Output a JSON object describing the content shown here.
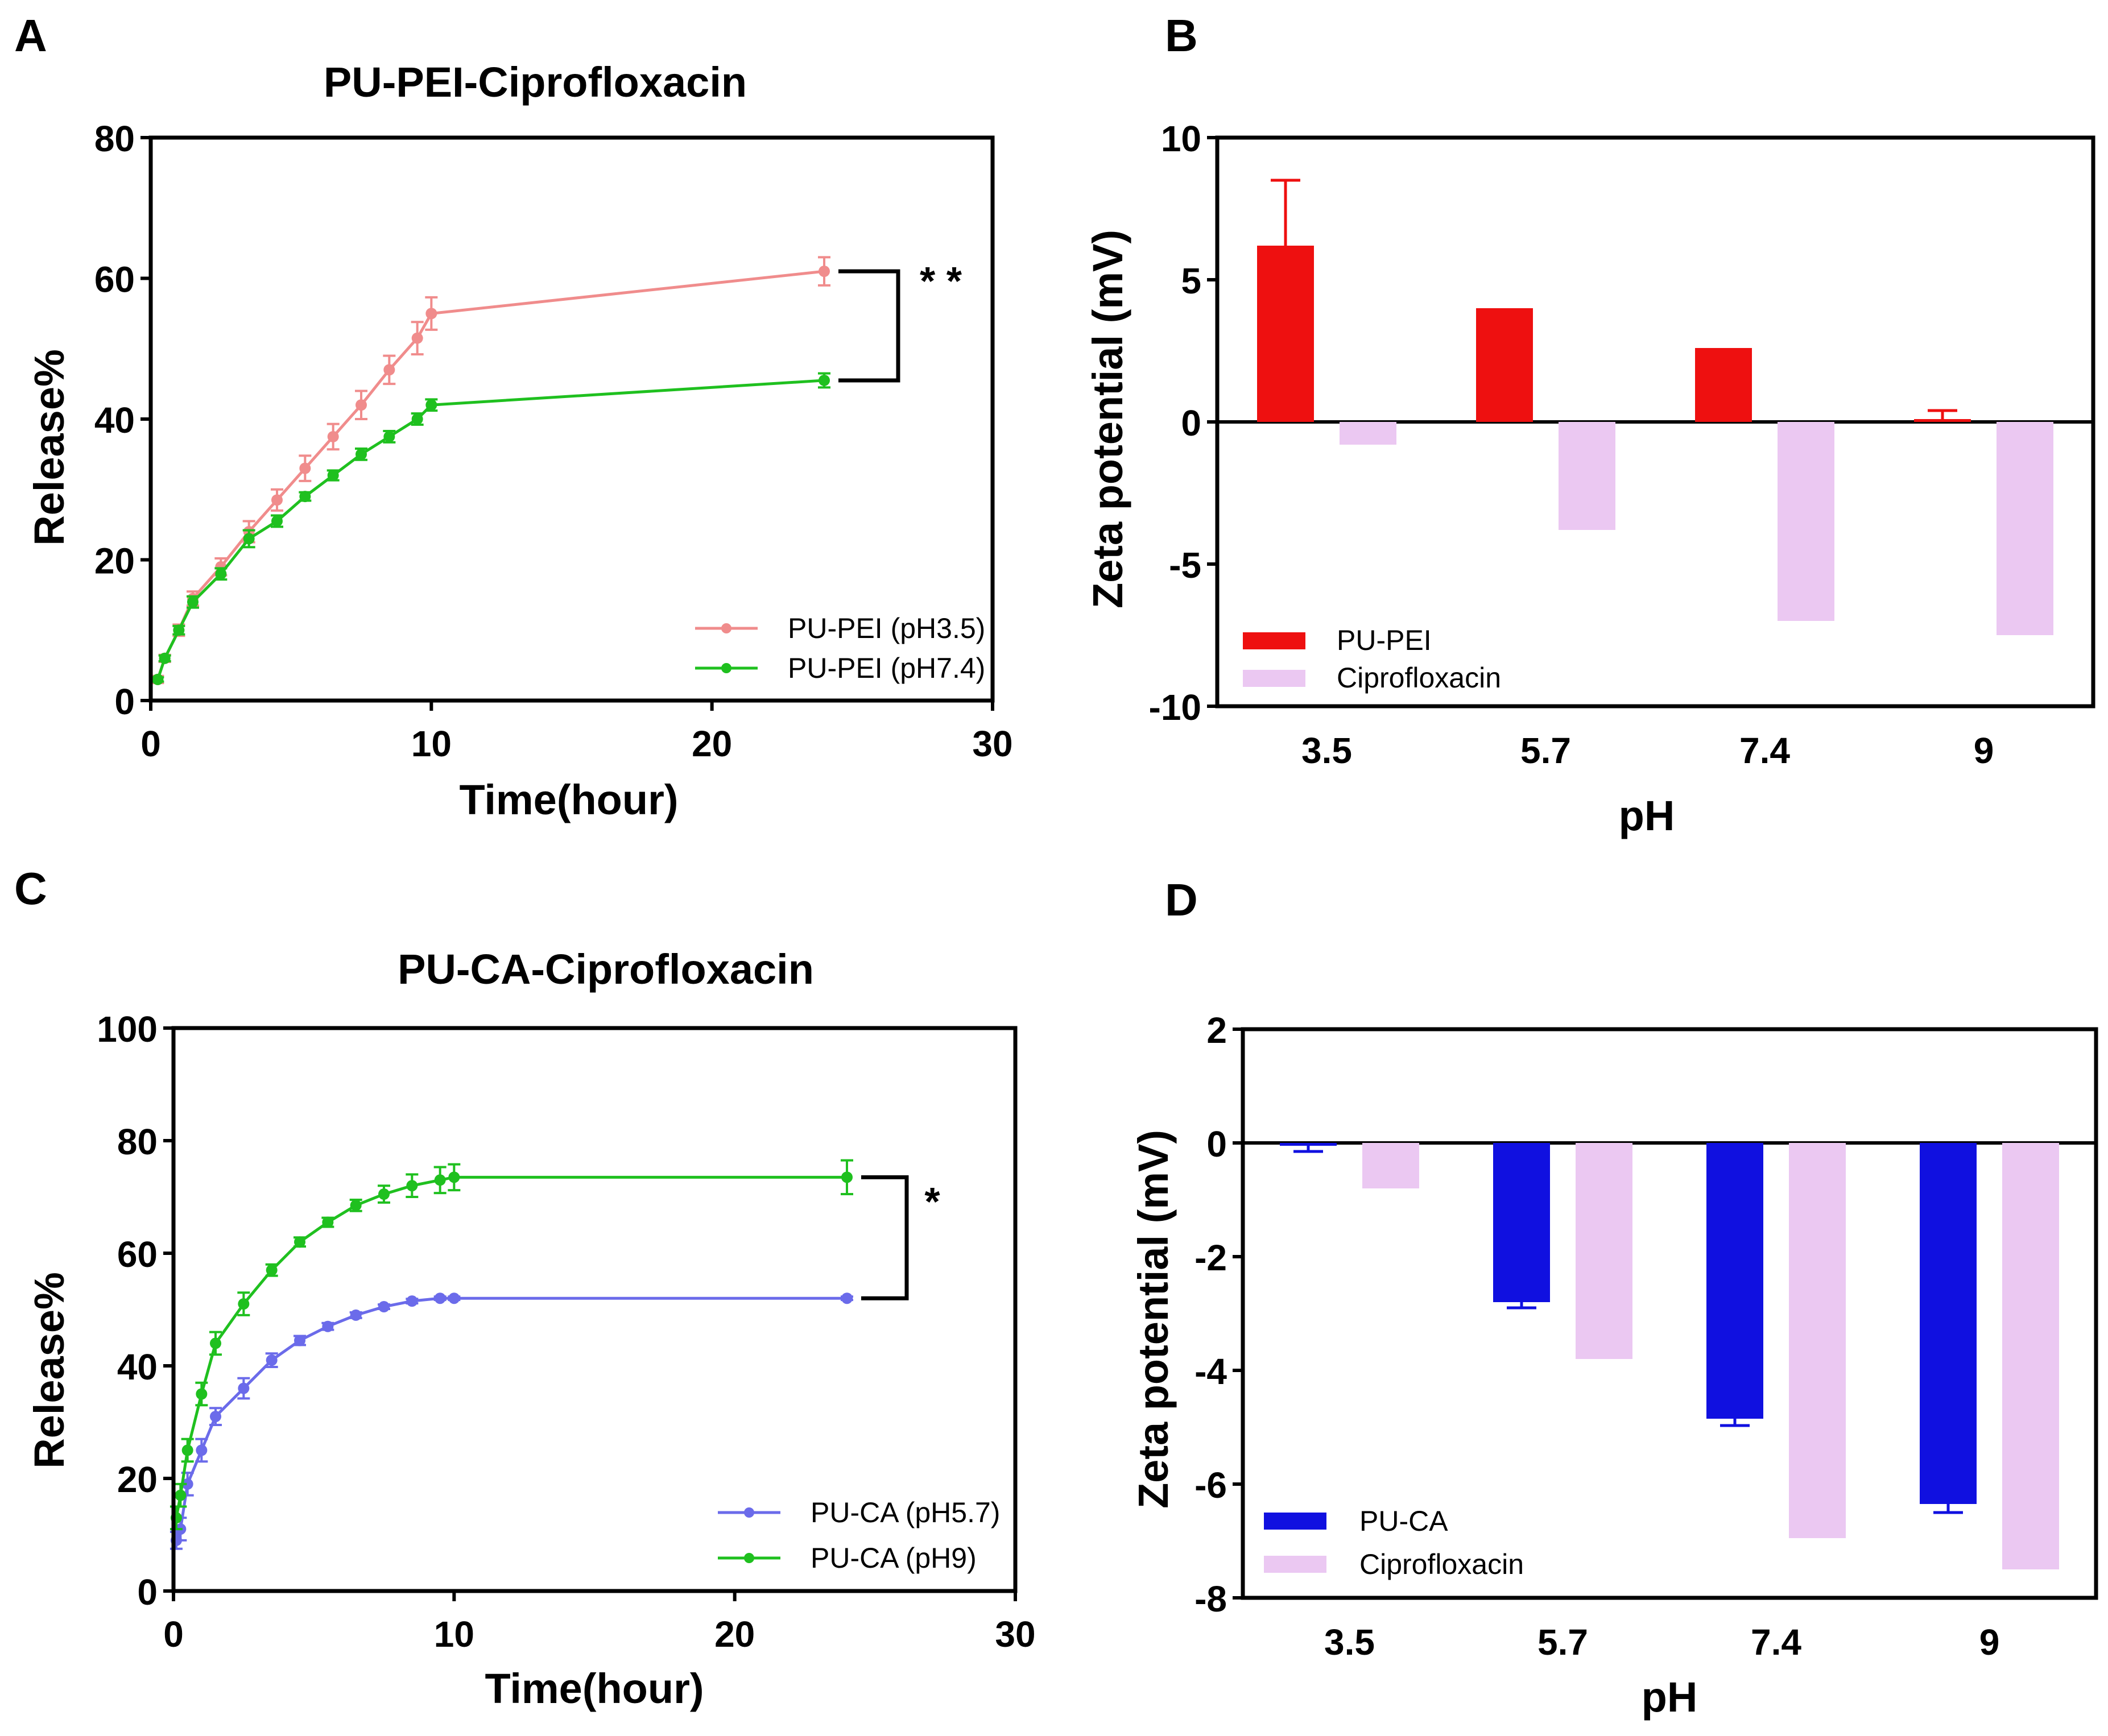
{
  "chart_data": [
    {
      "panel_label": "A",
      "type": "line",
      "title": "PU-PEI-Ciprofloxacin",
      "xlabel": "Time(hour)",
      "ylabel": "Release%",
      "xlim": [
        0,
        30
      ],
      "ylim": [
        0,
        80
      ],
      "xticks": [
        "0",
        "10",
        "20",
        "30"
      ],
      "yticks": [
        "0",
        "20",
        "40",
        "60",
        "80"
      ],
      "legend_position": "bottom-right",
      "significance": "* *",
      "series": [
        {
          "name": "PU-PEI (pH3.5)",
          "color": "#f08c8c",
          "x": [
            0.25,
            0.5,
            1,
            1.5,
            2.5,
            3.5,
            4.5,
            5.5,
            6.5,
            7.5,
            8.5,
            9.5,
            10,
            24
          ],
          "y": [
            3,
            6,
            10,
            14.5,
            19,
            24,
            28.5,
            33,
            37.5,
            42,
            47,
            51.5,
            55,
            61
          ],
          "err": [
            0.5,
            0.5,
            0.8,
            1,
            1.2,
            1.5,
            1.5,
            1.8,
            1.8,
            2,
            2,
            2.3,
            2.3,
            2
          ]
        },
        {
          "name": "PU-PEI (pH7.4)",
          "color": "#1fc01f",
          "x": [
            0.25,
            0.5,
            1,
            1.5,
            2.5,
            3.5,
            4.5,
            5.5,
            6.5,
            7.5,
            8.5,
            9.5,
            10,
            24
          ],
          "y": [
            3,
            6,
            10,
            14,
            18,
            23,
            25.5,
            29,
            32,
            35,
            37.5,
            40,
            42,
            45.5
          ],
          "err": [
            0.3,
            0.4,
            0.6,
            0.8,
            0.8,
            1.2,
            0.8,
            0.6,
            0.7,
            0.8,
            0.8,
            0.8,
            0.8,
            1
          ]
        }
      ]
    },
    {
      "panel_label": "B",
      "type": "bar",
      "title": "",
      "xlabel": "pH",
      "ylabel": "Zeta potential (mV)",
      "categories": [
        "3.5",
        "5.7",
        "7.4",
        "9"
      ],
      "ylim": [
        -10,
        10
      ],
      "yticks": [
        "10",
        "5",
        "0",
        "-5",
        "-10"
      ],
      "legend_position": "bottom-left",
      "series": [
        {
          "name": "PU-PEI",
          "color": "#ee1010",
          "values": [
            6.2,
            4,
            2.6,
            0.1
          ],
          "err": [
            2.3,
            0,
            0,
            0.3
          ]
        },
        {
          "name": "Ciprofloxacin",
          "color": "#ebc8f2",
          "values": [
            -0.8,
            -3.8,
            -7,
            -7.5
          ],
          "err": [
            0,
            0,
            0,
            0
          ]
        }
      ]
    },
    {
      "panel_label": "C",
      "type": "line",
      "title": "PU-CA-Ciprofloxacin",
      "xlabel": "Time(hour)",
      "ylabel": "Release%",
      "xlim": [
        0,
        30
      ],
      "ylim": [
        0,
        100
      ],
      "xticks": [
        "0",
        "10",
        "20",
        "30"
      ],
      "yticks": [
        "0",
        "20",
        "40",
        "60",
        "80",
        "100"
      ],
      "legend_position": "bottom-right",
      "significance": "*",
      "series": [
        {
          "name": "PU-CA (pH5.7)",
          "color": "#6b6bea",
          "x": [
            0.1,
            0.25,
            0.5,
            1,
            1.5,
            2.5,
            3.5,
            4.5,
            5.5,
            6.5,
            7.5,
            8.5,
            9.5,
            10,
            24
          ],
          "y": [
            9,
            11,
            19,
            25,
            31,
            36,
            41,
            44.5,
            47,
            49,
            50.5,
            51.5,
            52,
            52,
            52
          ],
          "err": [
            1.5,
            2,
            2,
            2,
            1.5,
            1.8,
            1.2,
            0.8,
            0.6,
            0.5,
            0.4,
            0.4,
            0.3,
            0.3,
            0.3
          ]
        },
        {
          "name": "PU-CA (pH9)",
          "color": "#1fc01f",
          "x": [
            0.1,
            0.25,
            0.5,
            1,
            1.5,
            2.5,
            3.5,
            4.5,
            5.5,
            6.5,
            7.5,
            8.5,
            9.5,
            10,
            24
          ],
          "y": [
            13,
            17,
            25,
            35,
            44,
            51,
            57,
            62,
            65.5,
            68.5,
            70.5,
            72,
            73,
            73.5,
            73.5
          ],
          "err": [
            2,
            2,
            2,
            2,
            2,
            2,
            1,
            0.8,
            0.8,
            1,
            1.5,
            2,
            2.3,
            2.3,
            3
          ]
        }
      ]
    },
    {
      "panel_label": "D",
      "type": "bar",
      "title": "",
      "xlabel": "pH",
      "ylabel": "Zeta potential (mV)",
      "categories": [
        "3.5",
        "5.7",
        "7.4",
        "9"
      ],
      "ylim": [
        -8,
        2
      ],
      "yticks": [
        "2",
        "0",
        "-2",
        "-4",
        "-6",
        "-8"
      ],
      "legend_position": "bottom-left",
      "series": [
        {
          "name": "PU-CA",
          "color": "#1010e0",
          "values": [
            -0.05,
            -2.8,
            -4.85,
            -6.35
          ],
          "err": [
            0.1,
            0.1,
            0.12,
            0.15
          ]
        },
        {
          "name": "Ciprofloxacin",
          "color": "#ebc8f2",
          "values": [
            -0.8,
            -3.8,
            -6.95,
            -7.5
          ],
          "err": [
            0,
            0,
            0,
            0
          ]
        }
      ]
    }
  ]
}
